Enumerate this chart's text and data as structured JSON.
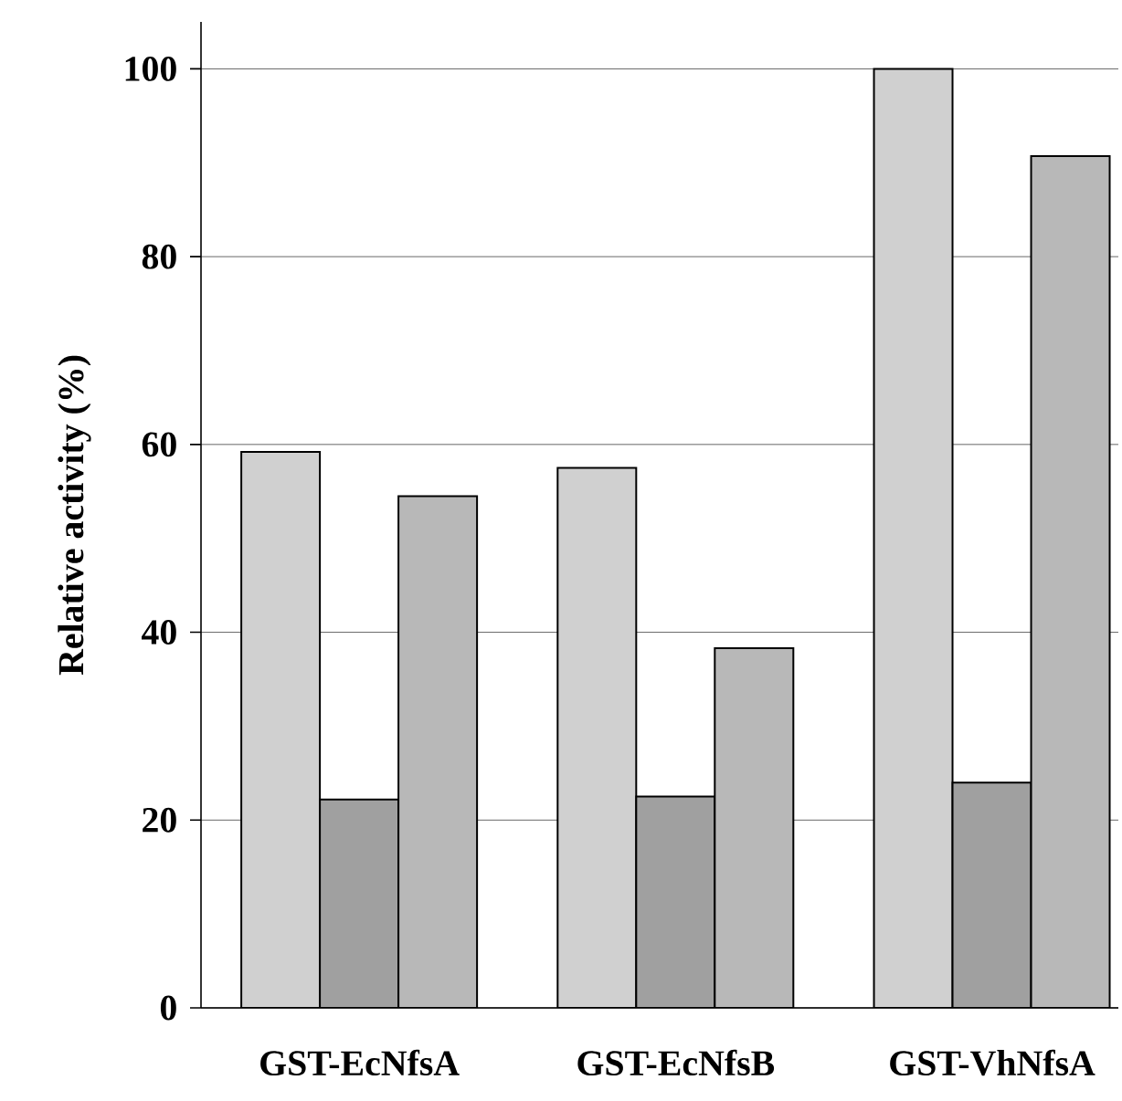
{
  "chart_data": {
    "type": "bar",
    "ylabel": "Relative activity (%)",
    "categories": [
      "GST-EcNfsA",
      "GST-EcNfsB",
      "GST-VhNfsA"
    ],
    "series": [
      {
        "color": "#d0d0d0",
        "values": [
          59.2,
          57.5,
          100
        ]
      },
      {
        "color": "#a0a0a0",
        "values": [
          22.2,
          22.5,
          24
        ]
      },
      {
        "color": "#b8b8b8",
        "values": [
          54.5,
          38.3,
          90.7
        ]
      }
    ],
    "ylim": [
      0,
      105
    ],
    "yticks": [
      0,
      20,
      40,
      60,
      80,
      100
    ],
    "grid": "y"
  }
}
